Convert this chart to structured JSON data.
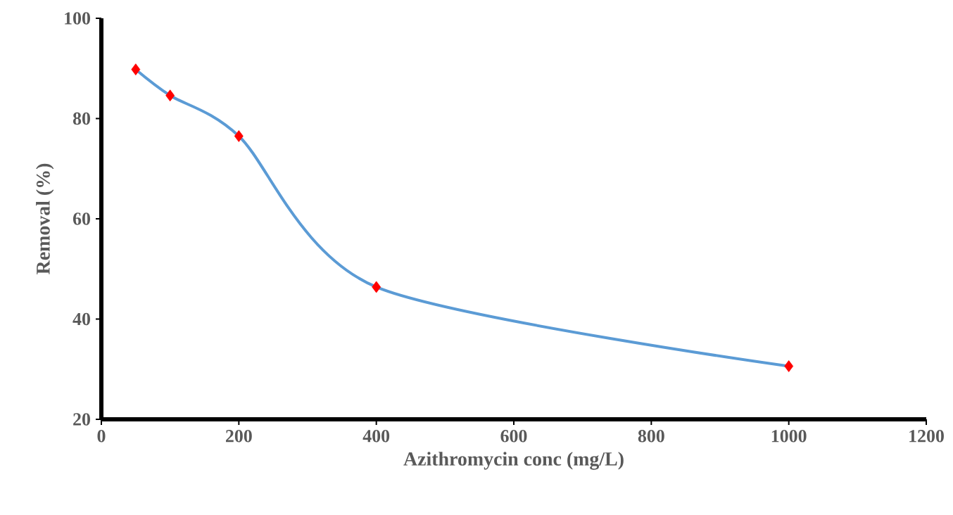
{
  "chart_data": {
    "type": "line",
    "xlabel": "Azithromycin conc (mg/L)",
    "ylabel": "Removal (%)",
    "x": [
      50,
      100,
      200,
      400,
      1000
    ],
    "series": [
      {
        "color": "#5b9bd5",
        "marker": "none",
        "values": [
          89.8,
          84.6,
          76.5,
          46.4,
          30.6
        ]
      },
      {
        "type": "scatter",
        "color": "#ff0000",
        "marker": "diamond",
        "values": [
          89.8,
          84.6,
          76.5,
          46.4,
          30.6
        ]
      }
    ],
    "xlim": [
      0,
      1200
    ],
    "ylim": [
      20,
      100
    ],
    "xticks": [
      0,
      200,
      400,
      600,
      800,
      1000,
      1200
    ],
    "yticks": [
      20,
      40,
      60,
      80,
      100
    ],
    "grid": false
  }
}
